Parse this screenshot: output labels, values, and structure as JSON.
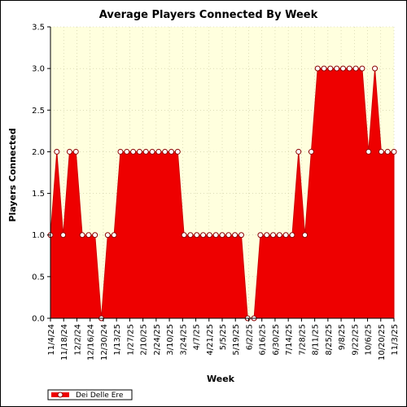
{
  "chart_data": {
    "type": "area",
    "title": "Average Players Connected By Week",
    "xlabel": "Week",
    "ylabel": "Players Connected",
    "ylim": [
      0,
      3.5
    ],
    "yticks": [
      "0.0",
      "0.5",
      "1.0",
      "1.5",
      "2.0",
      "2.5",
      "3.0",
      "3.5"
    ],
    "x_tick_labels": [
      "11/4/24",
      "11/18/24",
      "12/2/24",
      "12/16/24",
      "12/30/24",
      "1/13/25",
      "1/27/25",
      "2/10/25",
      "2/24/25",
      "3/10/25",
      "3/24/25",
      "4/7/25",
      "4/21/25",
      "5/5/25",
      "5/19/25",
      "6/2/25",
      "6/16/25",
      "6/30/25",
      "7/14/25",
      "7/28/25",
      "8/11/25",
      "8/25/25",
      "9/8/25",
      "9/22/25",
      "10/6/25",
      "10/20/25",
      "11/3/25"
    ],
    "legend_position": "bottom-left",
    "grid": true,
    "colors": {
      "fill": "#ee0000",
      "plot_bg": "#ffffde",
      "marker_fill": "#ffffff"
    },
    "series": [
      {
        "name": "Dei Delle Ere",
        "values": [
          1,
          2,
          1,
          2,
          2,
          1,
          1,
          1,
          0,
          1,
          1,
          2,
          2,
          2,
          2,
          2,
          2,
          2,
          2,
          2,
          2,
          1,
          1,
          1,
          1,
          1,
          1,
          1,
          1,
          1,
          1,
          0,
          0,
          1,
          1,
          1,
          1,
          1,
          1,
          2,
          1,
          2,
          3,
          3,
          3,
          3,
          3,
          3,
          3,
          3,
          2,
          3,
          2,
          2,
          2
        ]
      }
    ]
  }
}
